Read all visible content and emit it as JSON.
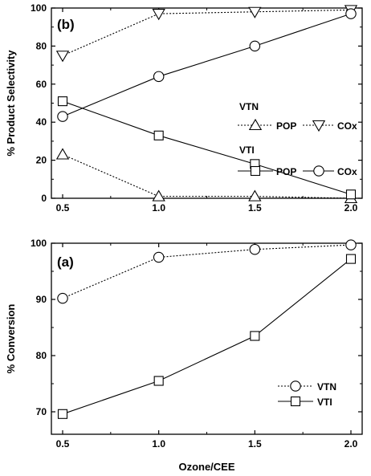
{
  "chart_data": [
    {
      "type": "line",
      "panel_label": "(b)",
      "ylabel": "% Product Selectivity",
      "xlabel": "",
      "xlim": [
        0.5,
        2.0
      ],
      "ylim": [
        0,
        100
      ],
      "xticks": [
        "0.5",
        "1.0",
        "1.5",
        "2.0"
      ],
      "yticks": [
        "0",
        "20",
        "40",
        "60",
        "80",
        "100"
      ],
      "legend_position": "right",
      "legend_groups": [
        "VTN",
        "VTI"
      ],
      "x": [
        0.5,
        1.0,
        1.5,
        2.0
      ],
      "series": [
        {
          "name": "POP",
          "group": "VTN",
          "marker": "triangle-up",
          "line": "dotted",
          "values": [
            23,
            1,
            1,
            0
          ]
        },
        {
          "name": "COx",
          "group": "VTN",
          "marker": "triangle-down",
          "line": "dotted",
          "values": [
            75,
            97,
            98,
            99
          ]
        },
        {
          "name": "POP",
          "group": "VTI",
          "marker": "square",
          "line": "solid",
          "values": [
            51,
            33,
            18,
            2
          ]
        },
        {
          "name": "COx",
          "group": "VTI",
          "marker": "circle",
          "line": "solid",
          "values": [
            43,
            64,
            80,
            97
          ]
        }
      ]
    },
    {
      "type": "line",
      "panel_label": "(a)",
      "ylabel": "% Conversion",
      "xlabel": "Ozone/CEE",
      "xlim": [
        0.5,
        2.0
      ],
      "ylim": [
        66,
        100
      ],
      "xticks": [
        "0.5",
        "1.0",
        "1.5",
        "2.0"
      ],
      "yticks": [
        "70",
        "80",
        "90",
        "100"
      ],
      "legend_position": "bottom-right",
      "x": [
        0.5,
        1.0,
        1.5,
        2.0
      ],
      "series": [
        {
          "name": "VTN",
          "marker": "circle",
          "line": "dotted",
          "values": [
            90.2,
            97.5,
            98.9,
            99.7
          ]
        },
        {
          "name": "VTI",
          "marker": "square",
          "line": "solid",
          "values": [
            69.6,
            75.5,
            83.5,
            97.2
          ]
        }
      ]
    }
  ]
}
